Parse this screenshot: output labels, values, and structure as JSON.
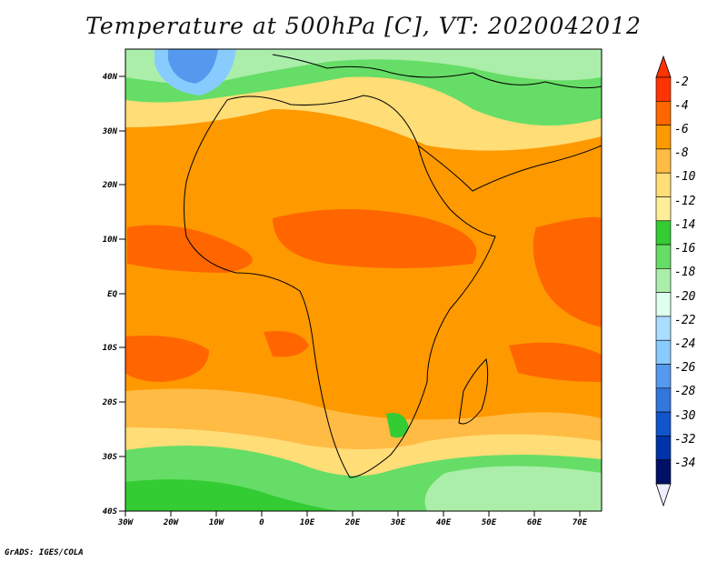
{
  "title": "Temperature at 500hPa [C], VT: 2020042012",
  "footer": "GrADS: IGES/COLA",
  "map": {
    "lat_labels": [
      "40N",
      "30N",
      "20N",
      "10N",
      "EQ",
      "10S",
      "20S",
      "30S",
      "40S"
    ],
    "lon_labels": [
      "30W",
      "20W",
      "10W",
      "0",
      "10E",
      "20E",
      "30E",
      "40E",
      "50E",
      "60E",
      "70E"
    ]
  },
  "colorbar": {
    "labels": [
      "-2",
      "-4",
      "-6",
      "-8",
      "-10",
      "-12",
      "-14",
      "-16",
      "-18",
      "-20",
      "-22",
      "-24",
      "-26",
      "-28",
      "-30",
      "-32",
      "-34"
    ],
    "colors": [
      "#ff3300",
      "#ff6600",
      "#ff9900",
      "#ffbb44",
      "#ffdd77",
      "#ffee99",
      "#33cc33",
      "#66dd66",
      "#aaeeaa",
      "#ddffee",
      "#aaddff",
      "#88ccff",
      "#5599ee",
      "#3377dd",
      "#1155cc",
      "#0033aa",
      "#001166"
    ],
    "top_color": "#ff3300",
    "bottom_color": "#eeeeff"
  },
  "palette": {
    "land_outline": "#000000",
    "warm": "#ff9900"
  }
}
